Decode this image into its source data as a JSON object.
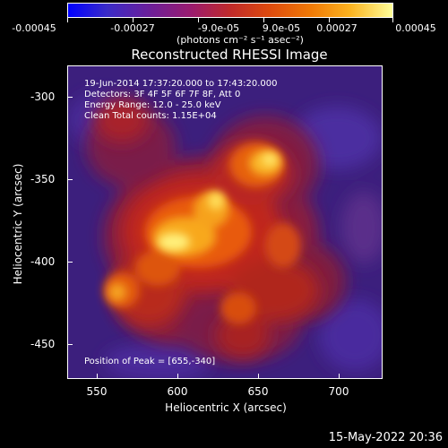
{
  "colorbar": {
    "labels": [
      "-0.00045",
      "-0.00027",
      "-9.0e-05",
      "9.0e-05",
      "0.00027",
      "0.00045"
    ],
    "units": "(photons cm⁻² s⁻¹ asec⁻²)"
  },
  "title": "Reconstructed RHESSI Image",
  "annotation": {
    "time": "19-Jun-2014 17:37:20.000 to 17:43:20.000",
    "detectors": "Detectors: 3F 4F 5F 6F 7F 8F, Att 0",
    "energy": "Energy Range: 12.0 - 25.0 keV",
    "clean": "Clean     Total counts: 1.15E+04",
    "peak": "Position of Peak = [655,-340]"
  },
  "axes": {
    "xlabel": "Heliocentric X (arcsec)",
    "ylabel": "Heliocentric Y (arcsec)",
    "xticks": [
      "550",
      "600",
      "650",
      "700"
    ],
    "yticks": [
      "-300",
      "-350",
      "-400",
      "-450"
    ]
  },
  "footer": {
    "timestamp": "15-May-2022 20:36"
  }
}
